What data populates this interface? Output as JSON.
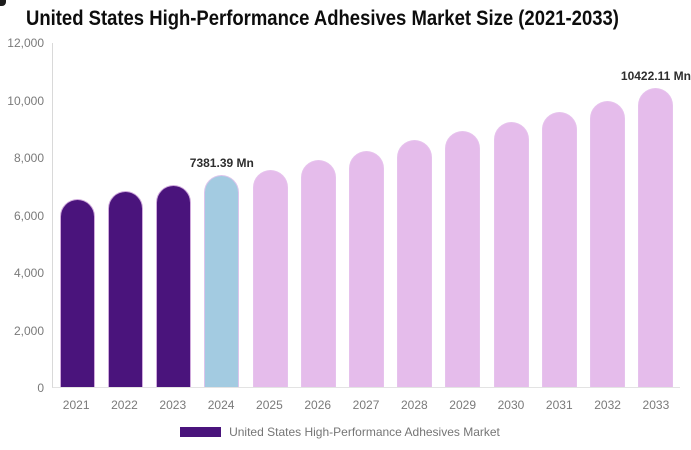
{
  "page": {
    "title": "United States High-Performance Adhesives Market Size (2021-2033)"
  },
  "legend": {
    "label": "United States High-Performance Adhesives Market"
  },
  "colors": {
    "historical": "#4A147C",
    "current": "#A3CBE1",
    "forecast": "#E5BCEB",
    "legend_swatch": "#4A147C",
    "axis_line": "#D9D9D9",
    "axis_text": "#7A7A7A",
    "data_label_text": "#2E2E2E"
  },
  "chart_data": {
    "type": "bar",
    "title": "United States High-Performance Adhesives Market Size (2021-2033)",
    "unit": "Mn",
    "categories": [
      "2021",
      "2022",
      "2023",
      "2024",
      "2025",
      "2026",
      "2027",
      "2028",
      "2029",
      "2030",
      "2031",
      "2032",
      "2033"
    ],
    "values": [
      6560,
      6850,
      7060,
      7381.39,
      7570,
      7920,
      8250,
      8600,
      8920,
      9230,
      9590,
      9960,
      10422.11
    ],
    "bar_roles": [
      "historical",
      "historical",
      "historical",
      "current",
      "forecast",
      "forecast",
      "forecast",
      "forecast",
      "forecast",
      "forecast",
      "forecast",
      "forecast",
      "forecast"
    ],
    "data_labels": {
      "2024": "7381.39 Mn",
      "2033": "10422.11 Mn"
    },
    "series": [
      {
        "name": "United States High-Performance Adhesives Market",
        "values": [
          6560,
          6850,
          7060,
          7381.39,
          7570,
          7920,
          8250,
          8600,
          8920,
          9230,
          9590,
          9960,
          10422.11
        ]
      }
    ],
    "xlabel": "",
    "ylabel": "",
    "ylim": [
      0,
      12000
    ],
    "yticks": [
      {
        "value": 12000,
        "label": "12,000"
      },
      {
        "value": 10000,
        "label": "10,000"
      },
      {
        "value": 8000,
        "label": "8,000"
      },
      {
        "value": 6000,
        "label": "6,000"
      },
      {
        "value": 4000,
        "label": "4,000"
      },
      {
        "value": 2000,
        "label": "2,000"
      },
      {
        "value": 0,
        "label": "0"
      }
    ],
    "grid": false,
    "legend_position": "bottom"
  }
}
